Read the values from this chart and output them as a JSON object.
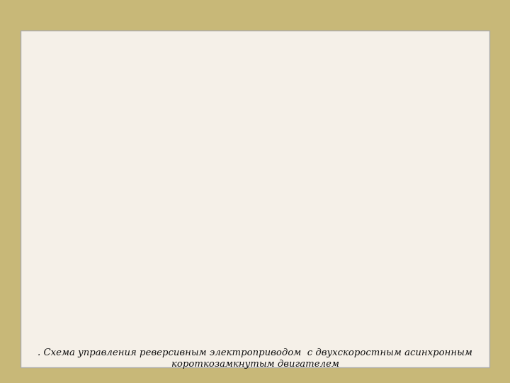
{
  "bg_color": "#c8b878",
  "paper_color": "#f5f0e8",
  "title_line1": ". Схема управления реверсивным электроприводом  с двухскоростным асинхронным",
  "title_line2": "короткозамкнутым двигателем",
  "title_fontsize": 9.5,
  "line_color": "#111111",
  "lw": 1.3
}
